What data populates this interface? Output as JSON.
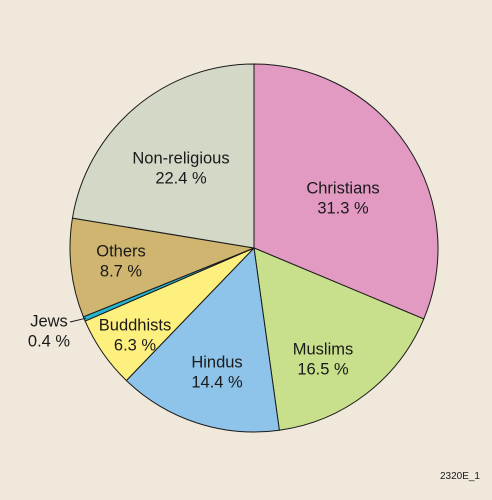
{
  "chart_data": {
    "type": "pie",
    "title": "",
    "slices": [
      {
        "label": "Christians",
        "value": 31.3,
        "display": "31.3 %",
        "color": "#e29ac2"
      },
      {
        "label": "Muslims",
        "value": 16.5,
        "display": "16.5 %",
        "color": "#c8df8b"
      },
      {
        "label": "Hindus",
        "value": 14.4,
        "display": "14.4 %",
        "color": "#8ec4ea"
      },
      {
        "label": "Buddhists",
        "value": 6.3,
        "display": "6.3 %",
        "color": "#fdf07e"
      },
      {
        "label": "Jews",
        "value": 0.4,
        "display": "0.4 %",
        "color": "#27b4cf"
      },
      {
        "label": "Others",
        "value": 8.7,
        "display": "8.7 %",
        "color": "#cfb56f"
      },
      {
        "label": "Non-religious",
        "value": 22.4,
        "display": "22.4 %",
        "color": "#d3d8c7"
      }
    ],
    "start_angle_deg": 0,
    "direction": "clockwise",
    "edge_color": "#1a1a1a"
  },
  "figure_id": "2320E_1"
}
